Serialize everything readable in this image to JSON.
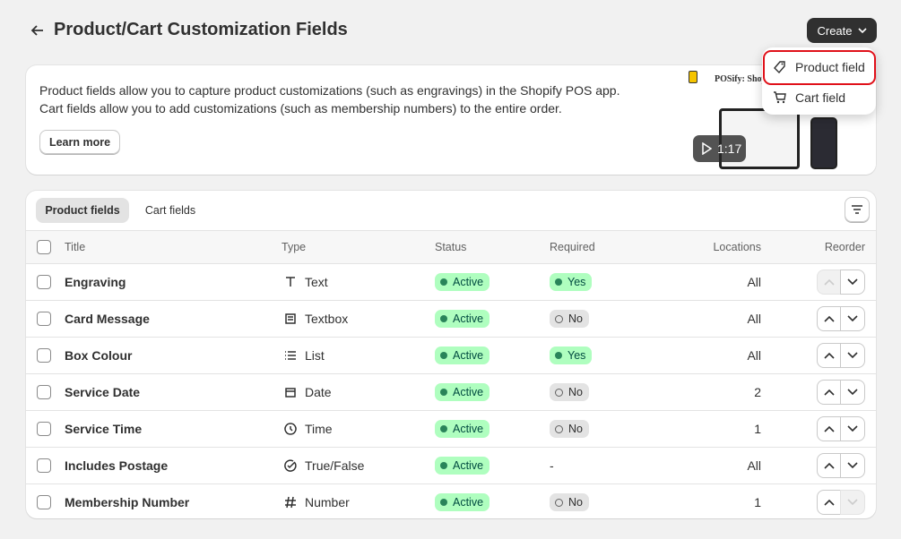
{
  "header": {
    "title": "Product/Cart Customization Fields",
    "create_button": "Create"
  },
  "dropdown": {
    "items": [
      "Product field",
      "Cart field"
    ]
  },
  "banner": {
    "lines": [
      "Product fields allow you to capture product customizations (such as engravings) in the Shopify POS app.",
      "Cart fields allow you to add customizations (such as membership numbers) to the entire order."
    ],
    "button": "Learn more",
    "video_duration": "1:17",
    "thumbnail_title": "POSify: Shopi"
  },
  "tabs": [
    "Product fields",
    "Cart fields"
  ],
  "table": {
    "columns": [
      "Title",
      "Type",
      "Status",
      "Required",
      "Locations",
      "Reorder"
    ],
    "rows": [
      [
        "Engraving",
        "Text",
        "Active",
        "Yes",
        "All"
      ],
      [
        "Card Message",
        "Textbox",
        "Active",
        "No",
        "All"
      ],
      [
        "Box Colour",
        "List",
        "Active",
        "Yes",
        "All"
      ],
      [
        "Service Date",
        "Date",
        "Active",
        "No",
        2
      ],
      [
        "Service Time",
        "Time",
        "Active",
        "No",
        1
      ],
      [
        "Includes Postage",
        "True/False",
        "Active",
        "-",
        "All"
      ],
      [
        "Membership Number",
        "Number",
        "Active",
        "No",
        1
      ]
    ]
  }
}
